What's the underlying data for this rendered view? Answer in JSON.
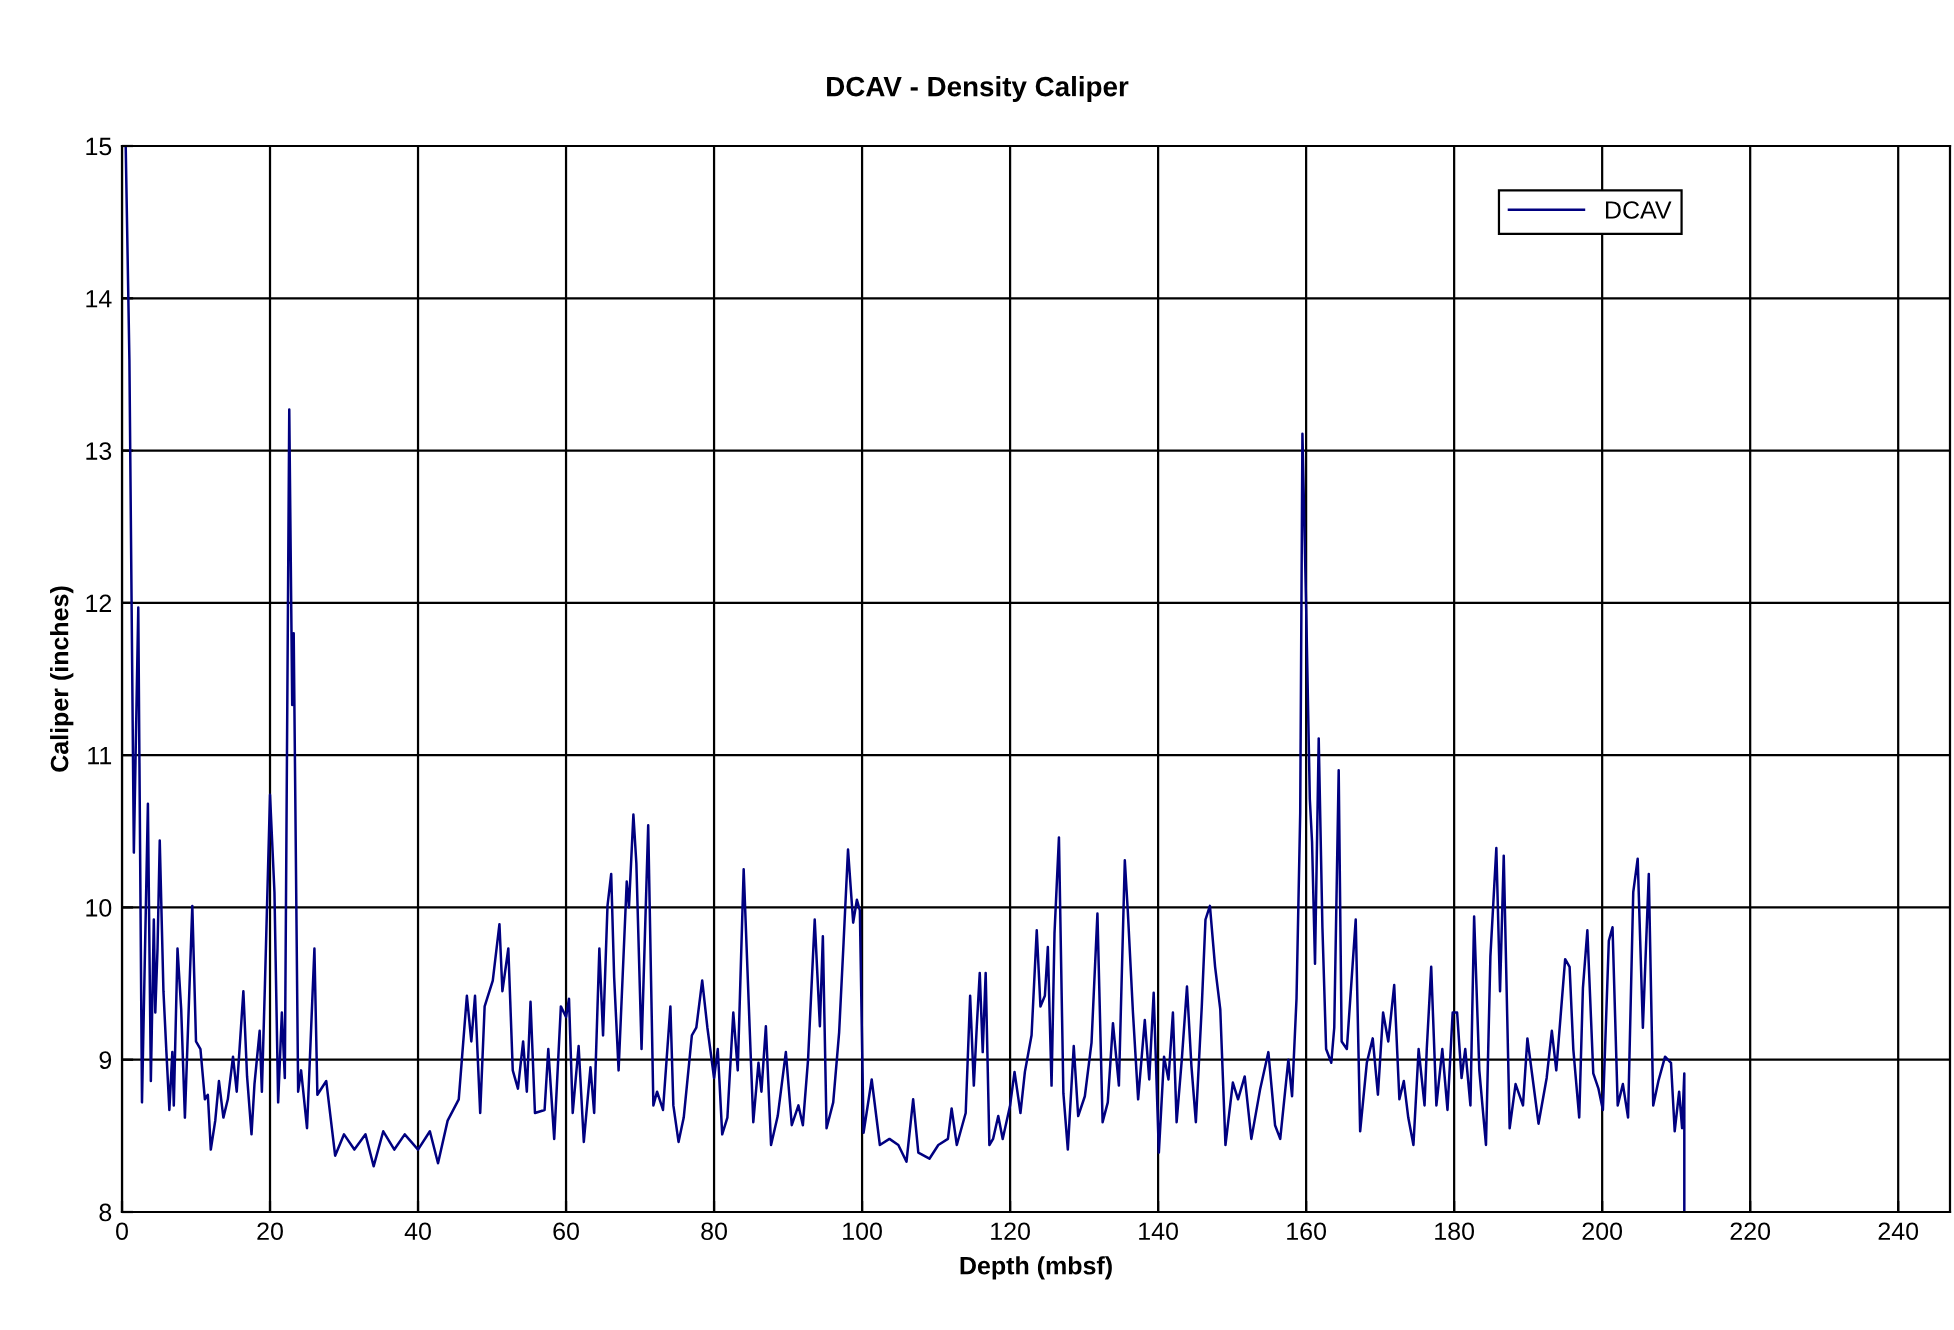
{
  "chart_data": {
    "type": "line",
    "title": "DCAV - Density Caliper",
    "xlabel": "Depth (mbsf)",
    "ylabel": "Caliper (inches)",
    "xlim": [
      0,
      247
    ],
    "xticks": [
      0,
      20,
      40,
      60,
      80,
      100,
      120,
      140,
      160,
      180,
      200,
      220,
      240
    ],
    "ylim": [
      8,
      15
    ],
    "yticks": [
      8,
      9,
      10,
      11,
      12,
      13,
      14,
      15
    ],
    "grid": true,
    "legend": "top right",
    "marker": "none",
    "line_style": "solid",
    "series": [
      {
        "name": "DCAV",
        "color": "#000080",
        "x": [
          0.5,
          1.0,
          1.6,
          2.2,
          2.7,
          3.5,
          3.9,
          4.3,
          4.5,
          4.8,
          5.1,
          5.6,
          6.0,
          6.4,
          6.8,
          7.0,
          7.5,
          8.0,
          8.5,
          9.5,
          10.0,
          10.6,
          11.2,
          11.6,
          12.0,
          12.6,
          13.1,
          13.7,
          14.3,
          15.0,
          15.5,
          16.4,
          16.9,
          17.5,
          17.9,
          18.6,
          18.9,
          19.3,
          20.0,
          20.6,
          21.1,
          21.6,
          22.0,
          22.6,
          23.0,
          23.2,
          23.8,
          24.2,
          25.0,
          26.0,
          26.4,
          27.6,
          28.8,
          30.0,
          31.4,
          32.9,
          34.0,
          35.3,
          36.8,
          38.2,
          40.0,
          41.6,
          42.7,
          44.0,
          45.5,
          46.6,
          47.2,
          47.7,
          48.4,
          49.0,
          50.1,
          51.0,
          51.4,
          52.2,
          52.8,
          53.5,
          54.2,
          54.7,
          55.2,
          55.8,
          57.1,
          57.6,
          58.4,
          59.3,
          60.0,
          60.4,
          60.9,
          61.7,
          62.4,
          63.3,
          63.8,
          64.5,
          65.0,
          65.6,
          66.1,
          66.5,
          67.1,
          68.2,
          68.5,
          69.1,
          69.5,
          70.2,
          71.1,
          71.8,
          72.3,
          73.1,
          74.1,
          74.5,
          75.2,
          75.9,
          77.0,
          77.6,
          78.4,
          79.1,
          80.0,
          80.5,
          81.1,
          81.8,
          82.6,
          83.2,
          84.0,
          84.8,
          85.3,
          86.0,
          86.4,
          87.0,
          87.7,
          88.6,
          89.7,
          90.5,
          91.4,
          92.0,
          92.7,
          93.6,
          94.3,
          94.7,
          95.2,
          96.1,
          96.9,
          97.5,
          98.1,
          98.8,
          99.3,
          99.7,
          100.2,
          101.3,
          102.4,
          103.7,
          104.9,
          106.0,
          106.9,
          107.6,
          109.1,
          110.3,
          111.6,
          112.1,
          112.8,
          114.0,
          114.6,
          115.1,
          115.5,
          115.9,
          116.3,
          116.7,
          117.2,
          117.7,
          118.4,
          119.0,
          120.0,
          120.6,
          121.4,
          122.0,
          122.9,
          123.6,
          124.1,
          124.7,
          125.1,
          125.6,
          126.0,
          126.6,
          127.2,
          127.8,
          128.6,
          129.2,
          130.1,
          131.0,
          131.8,
          132.5,
          133.2,
          133.9,
          134.7,
          135.5,
          135.9,
          136.6,
          137.3,
          138.2,
          138.8,
          139.4,
          140.1,
          140.8,
          141.4,
          142.0,
          142.5,
          143.2,
          143.9,
          144.5,
          145.1,
          145.9,
          146.4,
          147.0,
          147.7,
          148.4,
          149.1,
          150.1,
          150.8,
          151.7,
          152.6,
          153.8,
          154.9,
          155.8,
          156.5,
          157.6,
          158.1,
          158.7,
          159.2,
          159.5,
          160.0,
          160.5,
          160.8,
          161.2,
          161.7,
          162.2,
          162.7,
          163.4,
          163.8,
          164.4,
          164.8,
          165.5,
          166.7,
          167.3,
          168.2,
          169.0,
          169.7,
          170.4,
          171.1,
          171.9,
          172.6,
          173.2,
          173.8,
          174.5,
          175.2,
          176.0,
          176.3,
          176.9,
          177.6,
          178.4,
          179.1,
          179.8,
          180.4,
          181.0,
          181.5,
          182.2,
          182.7,
          183.4,
          184.3,
          184.9,
          185.7,
          186.2,
          186.7,
          187.5,
          188.3,
          189.3,
          189.9,
          190.6,
          191.4,
          192.5,
          193.2,
          193.8,
          195.0,
          195.6,
          196.1,
          196.9,
          197.4,
          198.0,
          198.8,
          199.5,
          200.1,
          200.9,
          201.4,
          202.1,
          202.8,
          203.5,
          204.2,
          204.8,
          205.5,
          206.3,
          206.9,
          207.6,
          208.5,
          209.3,
          209.8,
          210.4,
          210.8,
          211.1,
          211.1
        ],
        "values": [
          15.0,
          13.6,
          10.36,
          11.97,
          8.72,
          10.68,
          8.86,
          9.92,
          9.31,
          9.73,
          10.44,
          9.45,
          9.05,
          8.67,
          9.05,
          8.7,
          9.73,
          9.33,
          8.62,
          10.01,
          9.12,
          9.07,
          8.74,
          8.77,
          8.41,
          8.6,
          8.86,
          8.62,
          8.74,
          9.02,
          8.79,
          9.45,
          8.89,
          8.51,
          8.84,
          9.19,
          8.79,
          9.47,
          10.74,
          10.1,
          8.72,
          9.31,
          8.88,
          13.27,
          11.33,
          11.8,
          8.79,
          8.93,
          8.55,
          9.73,
          8.77,
          8.86,
          8.37,
          8.51,
          8.41,
          8.51,
          8.3,
          8.53,
          8.41,
          8.51,
          8.41,
          8.53,
          8.32,
          8.6,
          8.74,
          9.42,
          9.12,
          9.42,
          8.65,
          9.35,
          9.52,
          9.89,
          9.45,
          9.73,
          8.93,
          8.81,
          9.12,
          8.79,
          9.38,
          8.65,
          8.67,
          9.07,
          8.48,
          9.35,
          9.28,
          9.4,
          8.65,
          9.09,
          8.46,
          8.95,
          8.65,
          9.73,
          9.16,
          10.01,
          10.22,
          9.54,
          8.93,
          10.17,
          10.0,
          10.61,
          10.29,
          9.07,
          10.54,
          8.7,
          8.79,
          8.67,
          9.35,
          8.7,
          8.46,
          8.62,
          9.16,
          9.21,
          9.52,
          9.21,
          8.88,
          9.07,
          8.51,
          8.62,
          9.31,
          8.93,
          10.25,
          9.22,
          8.59,
          8.98,
          8.79,
          9.22,
          8.44,
          8.63,
          9.05,
          8.57,
          8.7,
          8.57,
          9.0,
          9.92,
          9.22,
          9.81,
          8.55,
          8.72,
          9.18,
          9.77,
          10.38,
          9.9,
          10.05,
          9.98,
          8.52,
          8.87,
          8.44,
          8.48,
          8.44,
          8.33,
          8.74,
          8.39,
          8.35,
          8.44,
          8.48,
          8.68,
          8.44,
          8.65,
          9.42,
          8.83,
          9.22,
          9.57,
          9.05,
          9.57,
          8.44,
          8.48,
          8.63,
          8.48,
          8.7,
          8.92,
          8.65,
          8.92,
          9.16,
          9.85,
          9.35,
          9.42,
          9.74,
          8.83,
          9.83,
          10.46,
          8.78,
          8.41,
          9.09,
          8.63,
          8.76,
          9.11,
          9.96,
          8.59,
          8.72,
          9.24,
          8.83,
          10.31,
          9.98,
          9.31,
          8.74,
          9.26,
          8.87,
          9.44,
          8.39,
          9.02,
          8.87,
          9.31,
          8.59,
          9.0,
          9.48,
          8.96,
          8.59,
          9.35,
          9.92,
          10.01,
          9.61,
          9.33,
          8.44,
          8.85,
          8.74,
          8.89,
          8.48,
          8.81,
          9.05,
          8.57,
          8.48,
          9.0,
          8.76,
          9.4,
          10.62,
          13.11,
          11.98,
          10.71,
          10.43,
          9.63,
          11.11,
          9.87,
          9.07,
          8.98,
          9.21,
          10.9,
          9.12,
          9.07,
          9.92,
          8.53,
          8.98,
          9.14,
          8.77,
          9.31,
          9.12,
          9.49,
          8.74,
          8.86,
          8.62,
          8.44,
          9.07,
          8.7,
          9.07,
          9.61,
          8.7,
          9.07,
          8.67,
          9.31,
          9.31,
          8.88,
          9.07,
          8.7,
          9.94,
          8.93,
          8.44,
          9.68,
          10.39,
          9.45,
          10.34,
          8.55,
          8.84,
          8.7,
          9.14,
          8.88,
          8.58,
          8.88,
          9.19,
          8.93,
          9.66,
          9.61,
          9.07,
          8.62,
          9.47,
          9.85,
          8.91,
          8.81,
          8.67,
          9.78,
          9.87,
          8.7,
          8.84,
          8.62,
          10.1,
          10.32,
          9.21,
          10.22,
          8.7,
          8.86,
          9.02,
          8.98,
          8.53,
          8.79,
          8.55,
          8.91,
          8.0
        ]
      }
    ]
  }
}
